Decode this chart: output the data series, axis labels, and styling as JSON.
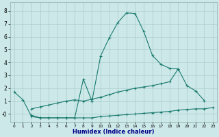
{
  "xlabel": "Humidex (Indice chaleur)",
  "background_color": "#cce8e8",
  "grid_color": "#aacccc",
  "line_color": "#1a7a6e",
  "xlim": [
    -0.5,
    23.5
  ],
  "ylim": [
    -0.6,
    8.7
  ],
  "line1_x": [
    0,
    1,
    2,
    3,
    4,
    5,
    6,
    7,
    8,
    9,
    10,
    11,
    12,
    13,
    14,
    15,
    16,
    17,
    18,
    19
  ],
  "line1_y": [
    1.7,
    1.1,
    -0.2,
    -0.3,
    -0.3,
    -0.3,
    -0.3,
    -0.3,
    2.7,
    1.0,
    4.5,
    5.9,
    7.1,
    7.85,
    7.8,
    6.4,
    4.55,
    3.85,
    3.55,
    3.5
  ],
  "line2_x": [
    2,
    3,
    4,
    5,
    6,
    7,
    8,
    9,
    10,
    11,
    12,
    13,
    14,
    15,
    16,
    17,
    18,
    19,
    20,
    21,
    22
  ],
  "line2_y": [
    0.4,
    0.55,
    0.7,
    0.85,
    1.0,
    1.1,
    1.0,
    1.15,
    1.3,
    1.5,
    1.7,
    1.85,
    2.0,
    2.1,
    2.2,
    2.35,
    2.5,
    3.5,
    2.2,
    1.8,
    1.05
  ],
  "line3_x": [
    2,
    3,
    4,
    5,
    6,
    7,
    8,
    9,
    10,
    11,
    12,
    13,
    14,
    15,
    16,
    17,
    18,
    19,
    20,
    21,
    22,
    23
  ],
  "line3_y": [
    -0.1,
    -0.3,
    -0.3,
    -0.3,
    -0.3,
    -0.3,
    -0.3,
    -0.3,
    -0.2,
    -0.15,
    -0.1,
    -0.05,
    0.0,
    0.05,
    0.1,
    0.15,
    0.2,
    0.3,
    0.35,
    0.4,
    0.4,
    0.5
  ],
  "yticks": [
    8,
    7,
    6,
    5,
    4,
    3,
    2,
    1,
    0
  ],
  "ytick_labels": [
    "8",
    "7",
    "6",
    "5",
    "4",
    "3",
    "2",
    "1",
    "-0"
  ]
}
